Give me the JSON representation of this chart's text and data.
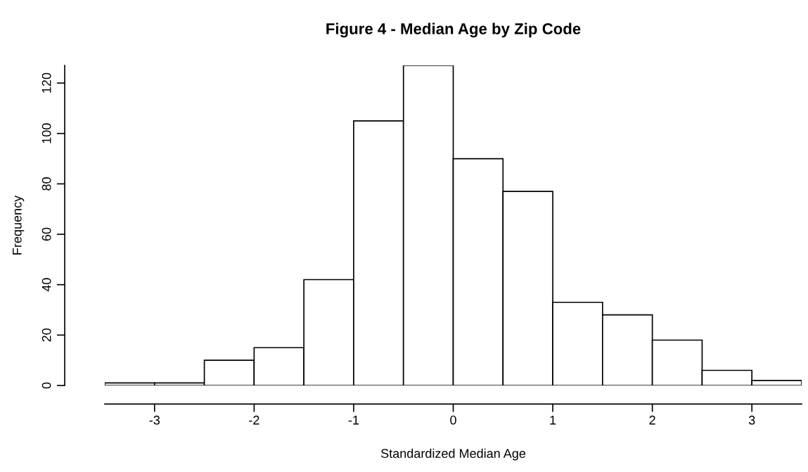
{
  "chart_data": {
    "type": "histogram",
    "title": "Figure 4 - Median Age by Zip Code",
    "xlabel": "Standardized Median Age",
    "ylabel": "Frequency",
    "bins": [
      -3.5,
      -3.0,
      -2.5,
      -2.0,
      -1.5,
      -1.0,
      -0.5,
      0.0,
      0.5,
      1.0,
      1.5,
      2.0,
      2.5,
      3.0,
      3.5
    ],
    "values": [
      1,
      1,
      10,
      15,
      42,
      105,
      127,
      90,
      77,
      33,
      28,
      18,
      6,
      2
    ],
    "color": "#ffffff",
    "xlim": [
      -3.5,
      3.5
    ],
    "ylim": [
      0,
      127
    ],
    "xticks": [
      -3,
      -2,
      -1,
      0,
      1,
      2,
      3
    ],
    "yticks": [
      0,
      20,
      40,
      60,
      80,
      100,
      120
    ],
    "grid": false
  }
}
